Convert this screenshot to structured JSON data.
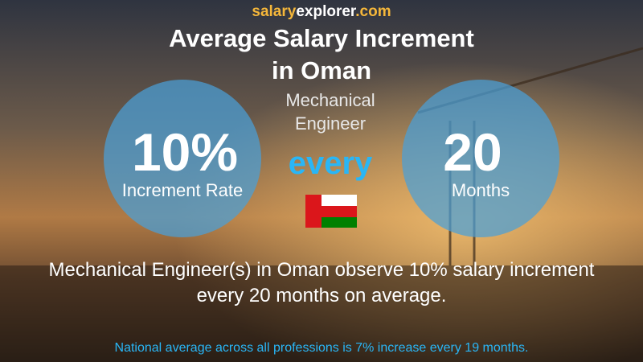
{
  "brand": {
    "part1": "salary",
    "part2": "explorer",
    "part3": ".com"
  },
  "title": {
    "line1": "Average Salary Increment",
    "line2": "in Oman"
  },
  "job": {
    "line1": "Mechanical",
    "line2": "Engineer"
  },
  "left_circle": {
    "value": "10%",
    "label": "Increment Rate"
  },
  "connector": "every",
  "right_circle": {
    "value": "20",
    "label": "Months"
  },
  "summary": {
    "line1": "Mechanical Engineer(s) in Oman observe 10% salary increment",
    "line2": "every 20 months on average."
  },
  "footnote": "National average across all professions is 7% increase every 19 months."
}
